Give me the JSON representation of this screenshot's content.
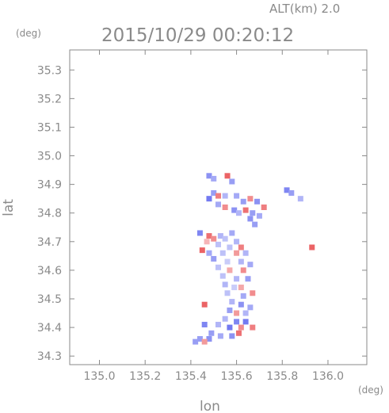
{
  "chart_data": {
    "type": "heatmap",
    "title": "2015/10/29 00:20:12",
    "altitude_label": "ALT(km)  2.0",
    "xlabel": "lon",
    "ylabel": "lat",
    "x_unit": "(deg)",
    "y_unit": "(deg)",
    "xlim": [
      134.87,
      136.17
    ],
    "ylim": [
      34.27,
      35.37
    ],
    "x_ticks": [
      135.0,
      135.2,
      135.4,
      135.6,
      135.8,
      136.0
    ],
    "x_tick_labels": [
      "135.0",
      "135.2",
      "135.4",
      "135.6",
      "135.8",
      "136.0"
    ],
    "y_ticks": [
      34.3,
      34.4,
      34.5,
      34.6,
      34.7,
      34.8,
      34.9,
      35.0,
      35.1,
      35.2,
      35.3
    ],
    "y_tick_labels": [
      "34.3",
      "34.4",
      "34.5",
      "34.6",
      "34.7",
      "34.8",
      "34.9",
      "35.0",
      "35.1",
      "35.2",
      "35.3"
    ],
    "grid": false,
    "colors": {
      "positive": "#e8474a",
      "negative": "#5a63ee",
      "axis": "#8a8a8a"
    },
    "points": [
      {
        "lon": 135.48,
        "lat": 34.93,
        "v": -0.6
      },
      {
        "lon": 135.5,
        "lat": 34.92,
        "v": -0.4
      },
      {
        "lon": 135.56,
        "lat": 34.93,
        "v": 0.8
      },
      {
        "lon": 135.58,
        "lat": 34.91,
        "v": -0.5
      },
      {
        "lon": 135.82,
        "lat": 34.88,
        "v": -0.7
      },
      {
        "lon": 135.84,
        "lat": 34.87,
        "v": -0.5
      },
      {
        "lon": 135.5,
        "lat": 34.87,
        "v": -0.5
      },
      {
        "lon": 135.52,
        "lat": 34.86,
        "v": 0.6
      },
      {
        "lon": 135.48,
        "lat": 34.85,
        "v": -0.8
      },
      {
        "lon": 135.55,
        "lat": 34.86,
        "v": -0.3
      },
      {
        "lon": 135.6,
        "lat": 34.86,
        "v": -0.4
      },
      {
        "lon": 135.63,
        "lat": 34.84,
        "v": -0.5
      },
      {
        "lon": 135.66,
        "lat": 34.85,
        "v": 0.5
      },
      {
        "lon": 135.69,
        "lat": 34.84,
        "v": -0.6
      },
      {
        "lon": 135.52,
        "lat": 34.83,
        "v": -0.4
      },
      {
        "lon": 135.55,
        "lat": 34.82,
        "v": 0.5
      },
      {
        "lon": 135.59,
        "lat": 34.81,
        "v": -0.6
      },
      {
        "lon": 135.61,
        "lat": 34.8,
        "v": -0.3
      },
      {
        "lon": 135.64,
        "lat": 34.81,
        "v": 0.7
      },
      {
        "lon": 135.67,
        "lat": 34.8,
        "v": -0.5
      },
      {
        "lon": 135.7,
        "lat": 34.79,
        "v": -0.4
      },
      {
        "lon": 135.72,
        "lat": 34.82,
        "v": 0.6
      },
      {
        "lon": 135.66,
        "lat": 34.78,
        "v": -0.6
      },
      {
        "lon": 135.68,
        "lat": 34.76,
        "v": -0.5
      },
      {
        "lon": 135.44,
        "lat": 34.73,
        "v": -0.7
      },
      {
        "lon": 135.48,
        "lat": 34.72,
        "v": 0.7
      },
      {
        "lon": 135.5,
        "lat": 34.71,
        "v": 0.5
      },
      {
        "lon": 135.53,
        "lat": 34.72,
        "v": -0.3
      },
      {
        "lon": 135.55,
        "lat": 34.71,
        "v": -0.2
      },
      {
        "lon": 135.58,
        "lat": 34.73,
        "v": -0.4
      },
      {
        "lon": 135.6,
        "lat": 34.7,
        "v": -0.3
      },
      {
        "lon": 135.47,
        "lat": 34.7,
        "v": 0.2
      },
      {
        "lon": 135.52,
        "lat": 34.69,
        "v": -0.2
      },
      {
        "lon": 135.57,
        "lat": 34.68,
        "v": -0.2
      },
      {
        "lon": 135.62,
        "lat": 34.68,
        "v": 0.6
      },
      {
        "lon": 135.45,
        "lat": 34.67,
        "v": 0.8
      },
      {
        "lon": 135.48,
        "lat": 34.66,
        "v": -0.4
      },
      {
        "lon": 135.54,
        "lat": 34.66,
        "v": -0.2
      },
      {
        "lon": 135.6,
        "lat": 34.66,
        "v": 0.4
      },
      {
        "lon": 135.64,
        "lat": 34.66,
        "v": -0.3
      },
      {
        "lon": 135.5,
        "lat": 34.64,
        "v": -0.5
      },
      {
        "lon": 135.56,
        "lat": 34.63,
        "v": -0.1
      },
      {
        "lon": 135.62,
        "lat": 34.63,
        "v": -0.3
      },
      {
        "lon": 135.52,
        "lat": 34.61,
        "v": -0.2
      },
      {
        "lon": 135.57,
        "lat": 34.6,
        "v": 0.3
      },
      {
        "lon": 135.63,
        "lat": 34.6,
        "v": 0.5
      },
      {
        "lon": 135.66,
        "lat": 34.62,
        "v": -0.4
      },
      {
        "lon": 135.54,
        "lat": 34.58,
        "v": -0.2
      },
      {
        "lon": 135.6,
        "lat": 34.57,
        "v": -0.3
      },
      {
        "lon": 135.65,
        "lat": 34.57,
        "v": -0.5
      },
      {
        "lon": 135.55,
        "lat": 34.55,
        "v": -0.3
      },
      {
        "lon": 135.59,
        "lat": 34.54,
        "v": -0.1
      },
      {
        "lon": 135.62,
        "lat": 34.54,
        "v": 0.3
      },
      {
        "lon": 135.56,
        "lat": 34.52,
        "v": -0.2
      },
      {
        "lon": 135.63,
        "lat": 34.51,
        "v": -0.4
      },
      {
        "lon": 135.67,
        "lat": 34.52,
        "v": 0.5
      },
      {
        "lon": 135.46,
        "lat": 34.48,
        "v": 0.8
      },
      {
        "lon": 135.58,
        "lat": 34.49,
        "v": -0.3
      },
      {
        "lon": 135.62,
        "lat": 34.48,
        "v": -0.6
      },
      {
        "lon": 135.66,
        "lat": 34.47,
        "v": -0.4
      },
      {
        "lon": 135.57,
        "lat": 34.46,
        "v": -0.5
      },
      {
        "lon": 135.6,
        "lat": 34.45,
        "v": 0.4
      },
      {
        "lon": 135.64,
        "lat": 34.45,
        "v": -0.3
      },
      {
        "lon": 135.55,
        "lat": 34.43,
        "v": -0.3
      },
      {
        "lon": 135.6,
        "lat": 34.42,
        "v": -0.7
      },
      {
        "lon": 135.64,
        "lat": 34.42,
        "v": -0.8
      },
      {
        "lon": 135.46,
        "lat": 34.41,
        "v": -0.7
      },
      {
        "lon": 135.52,
        "lat": 34.41,
        "v": -0.3
      },
      {
        "lon": 135.57,
        "lat": 34.4,
        "v": -0.8
      },
      {
        "lon": 135.62,
        "lat": 34.4,
        "v": 0.5
      },
      {
        "lon": 135.67,
        "lat": 34.4,
        "v": 0.6
      },
      {
        "lon": 135.49,
        "lat": 34.38,
        "v": -0.5
      },
      {
        "lon": 135.53,
        "lat": 34.37,
        "v": -0.4
      },
      {
        "lon": 135.58,
        "lat": 34.37,
        "v": -0.6
      },
      {
        "lon": 135.61,
        "lat": 34.38,
        "v": 0.7
      },
      {
        "lon": 135.44,
        "lat": 34.36,
        "v": -0.5
      },
      {
        "lon": 135.48,
        "lat": 34.36,
        "v": -0.6
      },
      {
        "lon": 135.42,
        "lat": 34.35,
        "v": -0.5
      },
      {
        "lon": 135.46,
        "lat": 34.35,
        "v": 0.4
      },
      {
        "lon": 135.93,
        "lat": 34.68,
        "v": 0.8
      },
      {
        "lon": 135.88,
        "lat": 34.85,
        "v": -0.3
      }
    ]
  }
}
